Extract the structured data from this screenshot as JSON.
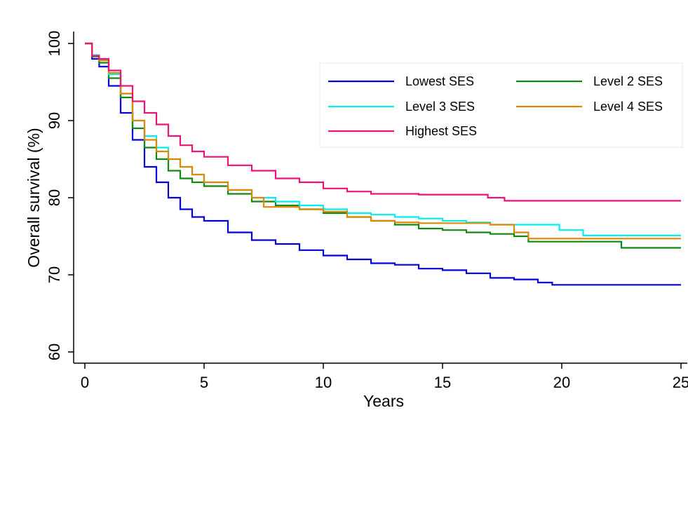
{
  "chart_data": {
    "type": "line",
    "xlabel": "Years",
    "ylabel": "Overall survival (%)",
    "xlim": [
      0,
      25
    ],
    "ylim": [
      60,
      100
    ],
    "xticks": [
      "0",
      "5",
      "10",
      "15",
      "20",
      "25"
    ],
    "yticks": [
      "60",
      "70",
      "80",
      "90",
      "100"
    ],
    "grid": false,
    "legend_position": "top-right",
    "series": [
      {
        "name": "Lowest SES",
        "color": "#0000dd",
        "x": [
          0,
          0.3,
          0.6,
          1.0,
          1.5,
          2.0,
          2.5,
          3.0,
          3.5,
          4.0,
          4.5,
          5.0,
          6.0,
          7.0,
          8.0,
          9.0,
          10.0,
          11.0,
          12.0,
          13.0,
          14.0,
          15.0,
          16.0,
          17.0,
          18.0,
          19.0,
          19.6,
          21.0,
          23.0,
          25.0
        ],
        "values": [
          100,
          98.0,
          97.0,
          94.5,
          91.0,
          87.5,
          84.0,
          82.0,
          80.0,
          78.5,
          77.5,
          77.0,
          75.5,
          74.5,
          74.0,
          73.2,
          72.5,
          72.0,
          71.5,
          71.3,
          70.8,
          70.6,
          70.2,
          69.6,
          69.4,
          69.0,
          68.7,
          68.7,
          68.7,
          68.7
        ]
      },
      {
        "name": "Level 2 SES",
        "color": "#118811",
        "x": [
          0,
          0.3,
          0.6,
          1.0,
          1.5,
          2.0,
          2.5,
          3.0,
          3.5,
          4.0,
          4.5,
          5.0,
          6.0,
          7.0,
          8.0,
          9.0,
          10.0,
          11.0,
          12.0,
          13.0,
          14.0,
          15.0,
          16.0,
          17.0,
          18.0,
          18.6,
          20.0,
          22.0,
          22.5,
          25.0
        ],
        "values": [
          100,
          98.3,
          97.5,
          95.5,
          93.0,
          89.0,
          86.5,
          85.0,
          83.5,
          82.5,
          82.0,
          81.5,
          80.5,
          79.5,
          79.0,
          78.5,
          78.0,
          77.5,
          77.0,
          76.5,
          76.0,
          75.8,
          75.5,
          75.3,
          75.0,
          74.3,
          74.3,
          74.3,
          73.5,
          73.5
        ]
      },
      {
        "name": "Level 3 SES",
        "color": "#00eeee",
        "x": [
          0,
          0.3,
          0.6,
          1.0,
          1.5,
          2.0,
          2.5,
          3.0,
          3.5,
          4.0,
          4.5,
          5.0,
          6.0,
          7.0,
          8.0,
          9.0,
          10.0,
          11.0,
          12.0,
          13.0,
          14.0,
          15.0,
          16.0,
          17.0,
          18.0,
          19.0,
          19.9,
          20.9,
          22.0,
          25.0
        ],
        "values": [
          100,
          98.5,
          97.8,
          96.0,
          93.5,
          90.0,
          88.0,
          86.5,
          85.0,
          84.0,
          83.0,
          82.0,
          81.0,
          80.0,
          79.5,
          79.0,
          78.5,
          78.0,
          77.8,
          77.5,
          77.3,
          77.0,
          76.8,
          76.5,
          76.5,
          76.5,
          75.8,
          75.1,
          75.1,
          75.1
        ]
      },
      {
        "name": "Level 4 SES",
        "color": "#dd8800",
        "x": [
          0,
          0.3,
          0.6,
          1.0,
          1.5,
          2.0,
          2.5,
          3.0,
          3.5,
          4.0,
          4.5,
          5.0,
          6.0,
          7.0,
          7.5,
          8.0,
          9.0,
          10.0,
          11.0,
          12.0,
          13.0,
          14.0,
          15.0,
          16.0,
          17.0,
          18.0,
          18.6,
          20.0,
          22.0,
          25.0
        ],
        "values": [
          100,
          98.4,
          97.8,
          96.2,
          93.5,
          90.0,
          87.5,
          86.0,
          85.0,
          84.0,
          83.0,
          82.0,
          81.0,
          80.0,
          78.8,
          78.8,
          78.5,
          78.2,
          77.5,
          77.0,
          76.8,
          76.7,
          76.7,
          76.7,
          76.5,
          75.5,
          74.7,
          74.7,
          74.7,
          74.7
        ]
      },
      {
        "name": "Highest SES",
        "color": "#ee1177",
        "x": [
          0,
          0.3,
          0.6,
          1.0,
          1.5,
          2.0,
          2.5,
          3.0,
          3.5,
          4.0,
          4.5,
          5.0,
          6.0,
          7.0,
          8.0,
          9.0,
          10.0,
          11.0,
          12.0,
          13.0,
          14.0,
          15.0,
          16.0,
          16.9,
          17.6,
          19.0,
          20.0,
          22.0,
          24.0,
          25.0
        ],
        "values": [
          100,
          98.4,
          98.0,
          96.5,
          94.5,
          92.5,
          91.0,
          89.5,
          88.0,
          86.8,
          86.0,
          85.3,
          84.2,
          83.5,
          82.5,
          82.0,
          81.2,
          80.8,
          80.5,
          80.5,
          80.4,
          80.4,
          80.4,
          80.0,
          79.6,
          79.6,
          79.6,
          79.6,
          79.6,
          79.6
        ]
      }
    ],
    "legend_order": [
      "Lowest SES",
      "Level 2 SES",
      "Level 3 SES",
      "Level 4 SES",
      "Highest SES"
    ]
  }
}
